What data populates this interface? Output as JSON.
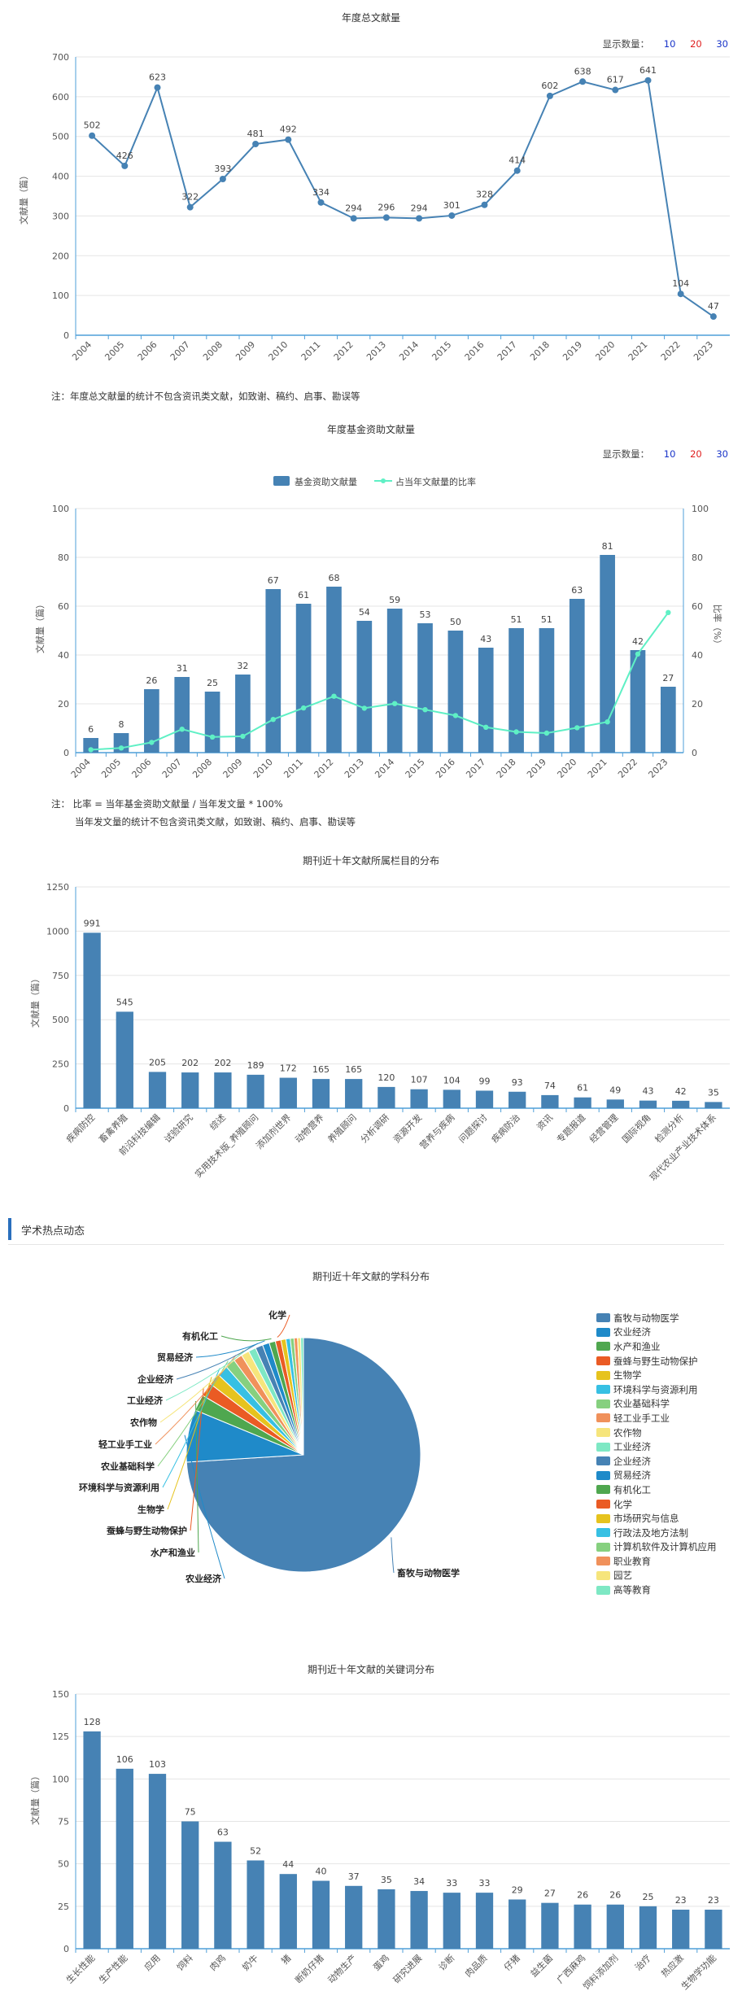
{
  "charts": {
    "total": {
      "title": "年度总文献量",
      "ylabel": "文献量（篇）",
      "note": "注：年度总文献量的统计不包含资讯类文献，如致谢、稿约、启事、勘误等"
    },
    "fund": {
      "title": "年度基金资助文献量",
      "ylabel_left": "文献量（篇）",
      "ylabel_right": "比率（%）",
      "legend_bar": "基金资助文献量",
      "legend_line": "占当年文献量的比率",
      "note1": "注：  比率 = 当年基金资助文献量 / 当年发文量 * 100%",
      "note2": "当年发文量的统计不包含资讯类文献，如致谢、稿约、启事、勘误等"
    },
    "column": {
      "title": "期刊近十年文献所属栏目的分布",
      "ylabel": "文献量（篇）"
    },
    "subject": {
      "title": "期刊近十年文献的学科分布"
    },
    "keyword": {
      "title": "期刊近十年文献的关键词分布",
      "ylabel": "文献量（篇）"
    }
  },
  "display_count": {
    "label": "显示数量：",
    "options": [
      "10",
      "20",
      "30"
    ]
  },
  "section": {
    "title": "学术热点动态"
  },
  "colors": {
    "bar": "#4682b4",
    "axis": "#4f9fd8",
    "line_total": "#4682b4",
    "line_ratio": "#5ff0c5",
    "opt10": "#1a35c9",
    "opt20": "#e02020",
    "opt30": "#1a35c9"
  },
  "chart_data": [
    {
      "id": "total",
      "type": "line",
      "title": "年度总文献量",
      "categories": [
        "2004",
        "2005",
        "2006",
        "2007",
        "2008",
        "2009",
        "2010",
        "2011",
        "2012",
        "2013",
        "2014",
        "2015",
        "2016",
        "2017",
        "2018",
        "2019",
        "2020",
        "2021",
        "2022",
        "2023"
      ],
      "values": [
        502,
        426,
        623,
        322,
        393,
        481,
        492,
        334,
        294,
        296,
        294,
        301,
        328,
        414,
        602,
        638,
        617,
        641,
        104,
        47
      ],
      "ylim": [
        0,
        700
      ],
      "yticks": [
        0,
        100,
        200,
        300,
        400,
        500,
        600,
        700
      ],
      "ylabel": "文献量（篇）"
    },
    {
      "id": "fund",
      "type": "bar",
      "title": "年度基金资助文献量",
      "categories": [
        "2004",
        "2005",
        "2006",
        "2007",
        "2008",
        "2009",
        "2010",
        "2011",
        "2012",
        "2013",
        "2014",
        "2015",
        "2016",
        "2017",
        "2018",
        "2019",
        "2020",
        "2021",
        "2022",
        "2023"
      ],
      "series": [
        {
          "name": "基金资助文献量",
          "values": [
            6,
            8,
            26,
            31,
            25,
            32,
            67,
            61,
            68,
            54,
            59,
            53,
            50,
            43,
            51,
            51,
            63,
            81,
            42,
            27
          ]
        },
        {
          "name": "占当年文献量的比率",
          "type": "line",
          "values": [
            1.2,
            1.9,
            4.2,
            9.6,
            6.4,
            6.7,
            13.6,
            18.3,
            23.1,
            18.2,
            20.1,
            17.6,
            15.2,
            10.4,
            8.5,
            8.0,
            10.2,
            12.6,
            40.4,
            57.4
          ]
        }
      ],
      "ylim": [
        0,
        100
      ],
      "yticks": [
        0,
        20,
        40,
        60,
        80,
        100
      ],
      "y2lim": [
        0,
        100
      ]
    },
    {
      "id": "column",
      "type": "bar",
      "title": "期刊近十年文献所属栏目的分布",
      "categories": [
        "疾病防控",
        "畜禽养殖",
        "前沿科技编辑",
        "试验研究",
        "综述",
        "实用技术版_养殖顾问",
        "添加剂世界",
        "动物营养",
        "养殖顾问",
        "分析调研",
        "资源开发",
        "营养与疾病",
        "问题探讨",
        "疾病防治",
        "资讯",
        "专题报道",
        "经营管理",
        "国际视角",
        "检测分析",
        "现代农业产业技术体系"
      ],
      "values": [
        991,
        545,
        205,
        202,
        202,
        189,
        172,
        165,
        165,
        120,
        107,
        104,
        99,
        93,
        74,
        61,
        49,
        43,
        42,
        35
      ],
      "ylim": [
        0,
        1250
      ],
      "yticks": [
        0,
        250,
        500,
        750,
        1000,
        1250
      ]
    },
    {
      "id": "subject",
      "type": "pie",
      "title": "期刊近十年文献的学科分布",
      "labels": [
        "畜牧与动物医学",
        "农业经济",
        "水产和渔业",
        "蚕蜂与野生动物保护",
        "生物学",
        "环境科学与资源利用",
        "农业基础科学",
        "轻工业手工业",
        "农作物",
        "工业经济",
        "企业经济",
        "贸易经济",
        "有机化工",
        "化学",
        "市场研究与信息",
        "行政法及地方法制",
        "计算机软件及计算机应用",
        "职业教育",
        "园艺",
        "高等教育"
      ],
      "values": [
        4300,
        420,
        130,
        110,
        95,
        90,
        80,
        70,
        65,
        60,
        60,
        55,
        50,
        45,
        40,
        35,
        30,
        28,
        25,
        22
      ],
      "colors": [
        "#4682b4",
        "#1f8ac9",
        "#4fa74f",
        "#ea5b24",
        "#e6c31e",
        "#37c0e3",
        "#86d07f",
        "#f0915b",
        "#f6e57c",
        "#7ee8c4",
        "#4682b4",
        "#1f8ac9",
        "#4fa74f",
        "#ea5b24",
        "#e6c31e",
        "#37c0e3",
        "#86d07f",
        "#f0915b",
        "#f6e57c",
        "#7ee8c4"
      ]
    },
    {
      "id": "keyword",
      "type": "bar",
      "title": "期刊近十年文献的关键词分布",
      "categories": [
        "生长性能",
        "生产性能",
        "应用",
        "饲料",
        "肉鸡",
        "奶牛",
        "猪",
        "断奶仔猪",
        "动物生产",
        "蛋鸡",
        "研究进展",
        "诊断",
        "肉品质",
        "仔猪",
        "益生菌",
        "广西麻鸡",
        "饲料添加剂",
        "治疗",
        "热应激",
        "生物学功能"
      ],
      "values": [
        128,
        106,
        103,
        75,
        63,
        52,
        44,
        40,
        37,
        35,
        34,
        33,
        33,
        29,
        27,
        26,
        26,
        25,
        23,
        23
      ],
      "ylim": [
        0,
        150
      ],
      "yticks": [
        0,
        25,
        50,
        75,
        100,
        125,
        150
      ]
    }
  ]
}
